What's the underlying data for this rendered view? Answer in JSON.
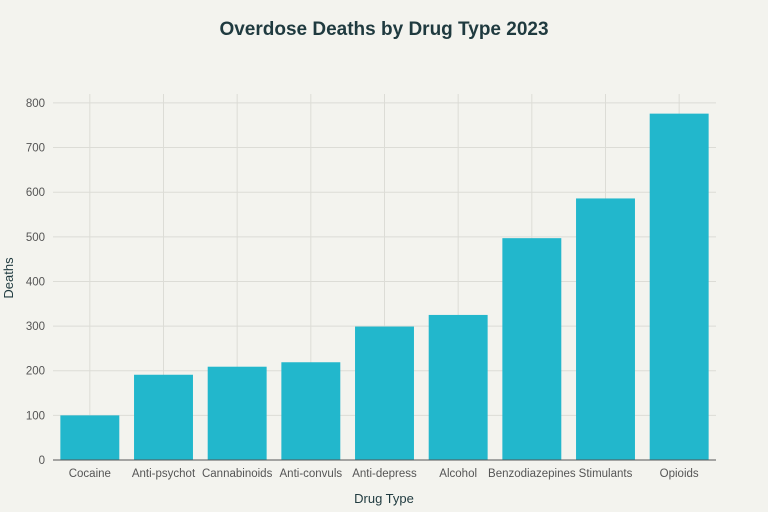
{
  "chart_data": {
    "type": "bar",
    "title": "Overdose Deaths by Drug Type 2023",
    "xlabel": "Drug Type",
    "ylabel": "Deaths",
    "categories": [
      "Cocaine",
      "Anti-psychot",
      "Cannabinoids",
      "Anti-convuls",
      "Anti-depress",
      "Alcohol",
      "Benzodiazepines",
      "Stimulants",
      "Opioids"
    ],
    "values": [
      100,
      191,
      209,
      219,
      299,
      325,
      497,
      586,
      776
    ],
    "ylim": [
      0,
      820
    ],
    "yticks": [
      0,
      100,
      200,
      300,
      400,
      500,
      600,
      700,
      800
    ],
    "grid": true,
    "bar_color": "#22b7cc"
  }
}
